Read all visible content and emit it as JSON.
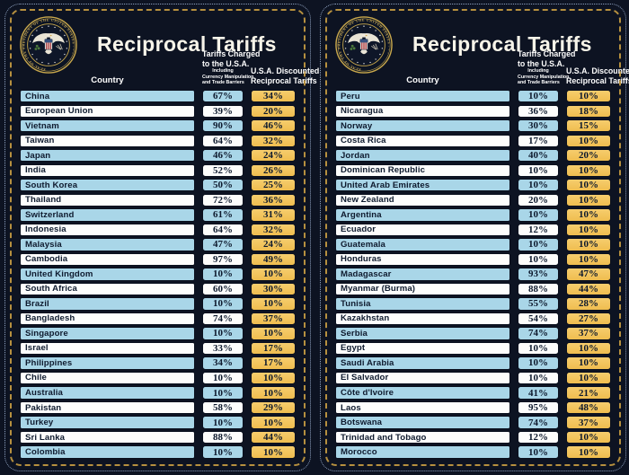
{
  "colors": {
    "background": "#0d1322",
    "panel_border_gold": "#b6903f",
    "panel_border_dotted": "#8fa2c0",
    "row_blue": "#a9d6e8",
    "row_white": "#fdfdfc",
    "badge_yellow": "#f3c55e",
    "box_border": "#0a101e",
    "header_text": "#ffffff",
    "row_text": "#0e1a2e"
  },
  "chart_data": [
    {
      "type": "table",
      "title": "Reciprocal Tariffs",
      "columns": [
        "Country",
        "Tariffs Charged to the U.S.A. Including Currency Manipulation and Trade Barriers",
        "U.S.A. Discounted Reciprocal Tariffs"
      ],
      "rows": [
        [
          "China",
          "67%",
          "34%"
        ],
        [
          "European Union",
          "39%",
          "20%"
        ],
        [
          "Vietnam",
          "90%",
          "46%"
        ],
        [
          "Taiwan",
          "64%",
          "32%"
        ],
        [
          "Japan",
          "46%",
          "24%"
        ],
        [
          "India",
          "52%",
          "26%"
        ],
        [
          "South Korea",
          "50%",
          "25%"
        ],
        [
          "Thailand",
          "72%",
          "36%"
        ],
        [
          "Switzerland",
          "61%",
          "31%"
        ],
        [
          "Indonesia",
          "64%",
          "32%"
        ],
        [
          "Malaysia",
          "47%",
          "24%"
        ],
        [
          "Cambodia",
          "97%",
          "49%"
        ],
        [
          "United Kingdom",
          "10%",
          "10%"
        ],
        [
          "South Africa",
          "60%",
          "30%"
        ],
        [
          "Brazil",
          "10%",
          "10%"
        ],
        [
          "Bangladesh",
          "74%",
          "37%"
        ],
        [
          "Singapore",
          "10%",
          "10%"
        ],
        [
          "Israel",
          "33%",
          "17%"
        ],
        [
          "Philippines",
          "34%",
          "17%"
        ],
        [
          "Chile",
          "10%",
          "10%"
        ],
        [
          "Australia",
          "10%",
          "10%"
        ],
        [
          "Pakistan",
          "58%",
          "29%"
        ],
        [
          "Turkey",
          "10%",
          "10%"
        ],
        [
          "Sri Lanka",
          "88%",
          "44%"
        ],
        [
          "Colombia",
          "10%",
          "10%"
        ]
      ]
    },
    {
      "type": "table",
      "title": "Reciprocal Tariffs",
      "columns": [
        "Country",
        "Tariffs Charged to the U.S.A. Including Currency Manipulation and Trade Barriers",
        "U.S.A. Discounted Reciprocal Tariffs"
      ],
      "rows": [
        [
          "Peru",
          "10%",
          "10%"
        ],
        [
          "Nicaragua",
          "36%",
          "18%"
        ],
        [
          "Norway",
          "30%",
          "15%"
        ],
        [
          "Costa Rica",
          "17%",
          "10%"
        ],
        [
          "Jordan",
          "40%",
          "20%"
        ],
        [
          "Dominican Republic",
          "10%",
          "10%"
        ],
        [
          "United Arab Emirates",
          "10%",
          "10%"
        ],
        [
          "New Zealand",
          "20%",
          "10%"
        ],
        [
          "Argentina",
          "10%",
          "10%"
        ],
        [
          "Ecuador",
          "12%",
          "10%"
        ],
        [
          "Guatemala",
          "10%",
          "10%"
        ],
        [
          "Honduras",
          "10%",
          "10%"
        ],
        [
          "Madagascar",
          "93%",
          "47%"
        ],
        [
          "Myanmar (Burma)",
          "88%",
          "44%"
        ],
        [
          "Tunisia",
          "55%",
          "28%"
        ],
        [
          "Kazakhstan",
          "54%",
          "27%"
        ],
        [
          "Serbia",
          "74%",
          "37%"
        ],
        [
          "Egypt",
          "10%",
          "10%"
        ],
        [
          "Saudi Arabia",
          "10%",
          "10%"
        ],
        [
          "El Salvador",
          "10%",
          "10%"
        ],
        [
          "Côte d'Ivoire",
          "41%",
          "21%"
        ],
        [
          "Laos",
          "95%",
          "48%"
        ],
        [
          "Botswana",
          "74%",
          "37%"
        ],
        [
          "Trinidad and Tobago",
          "12%",
          "10%"
        ],
        [
          "Morocco",
          "10%",
          "10%"
        ]
      ]
    }
  ],
  "panels": [
    {
      "title": "Reciprocal Tariffs",
      "seal_label": "Seal of the President of the United States",
      "columns": {
        "country": "Country",
        "charged_line1": "Tariffs Charged",
        "charged_line2": "to the U.S.A.",
        "charged_sub1": "Including",
        "charged_sub2": "Currency Manipulation",
        "charged_sub3": "and Trade Barriers",
        "discount_line1": "U.S.A. Discounted",
        "discount_line2": "Reciprocal Tariffs"
      }
    },
    {
      "title": "Reciprocal Tariffs",
      "seal_label": "Seal of the President of the United States",
      "columns": {
        "country": "Country",
        "charged_line1": "Tariffs Charged",
        "charged_line2": "to the U.S.A.",
        "charged_sub1": "Including",
        "charged_sub2": "Currency Manipulation",
        "charged_sub3": "and Trade Barriers",
        "discount_line1": "U.S.A. Discounted",
        "discount_line2": "Reciprocal Tariffs"
      }
    }
  ]
}
